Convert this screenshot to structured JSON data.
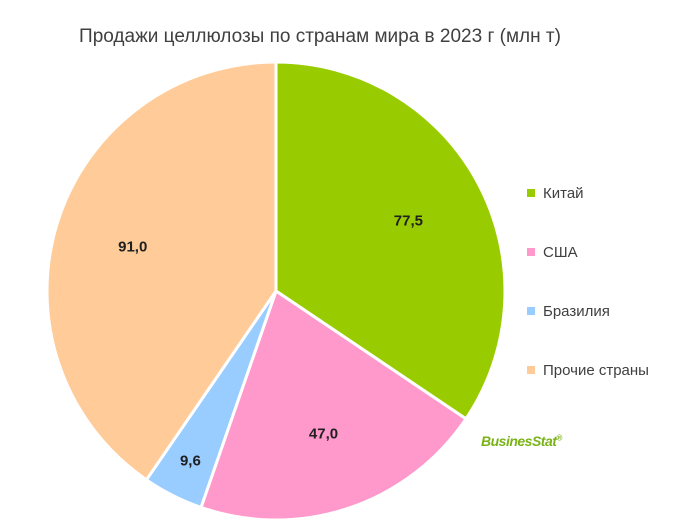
{
  "chart_data": {
    "type": "pie",
    "title": "Продажи целлюлозы по странам мира в 2023 г (млн т)",
    "slices": [
      {
        "name": "Китай",
        "value": 77.5,
        "label": "77,5",
        "color": "#99cc00"
      },
      {
        "name": "США",
        "value": 47.0,
        "label": "47,0",
        "color": "#ff99cc"
      },
      {
        "name": "Бразилия",
        "value": 9.6,
        "label": "9,6",
        "color": "#99ccff"
      },
      {
        "name": "Прочие страны",
        "value": 91.0,
        "label": "91,0",
        "color": "#ffcc99"
      }
    ],
    "legend_position": "right",
    "start_angle_deg": 0,
    "direction": "clockwise"
  },
  "watermark": {
    "text": "BusinesStat"
  }
}
